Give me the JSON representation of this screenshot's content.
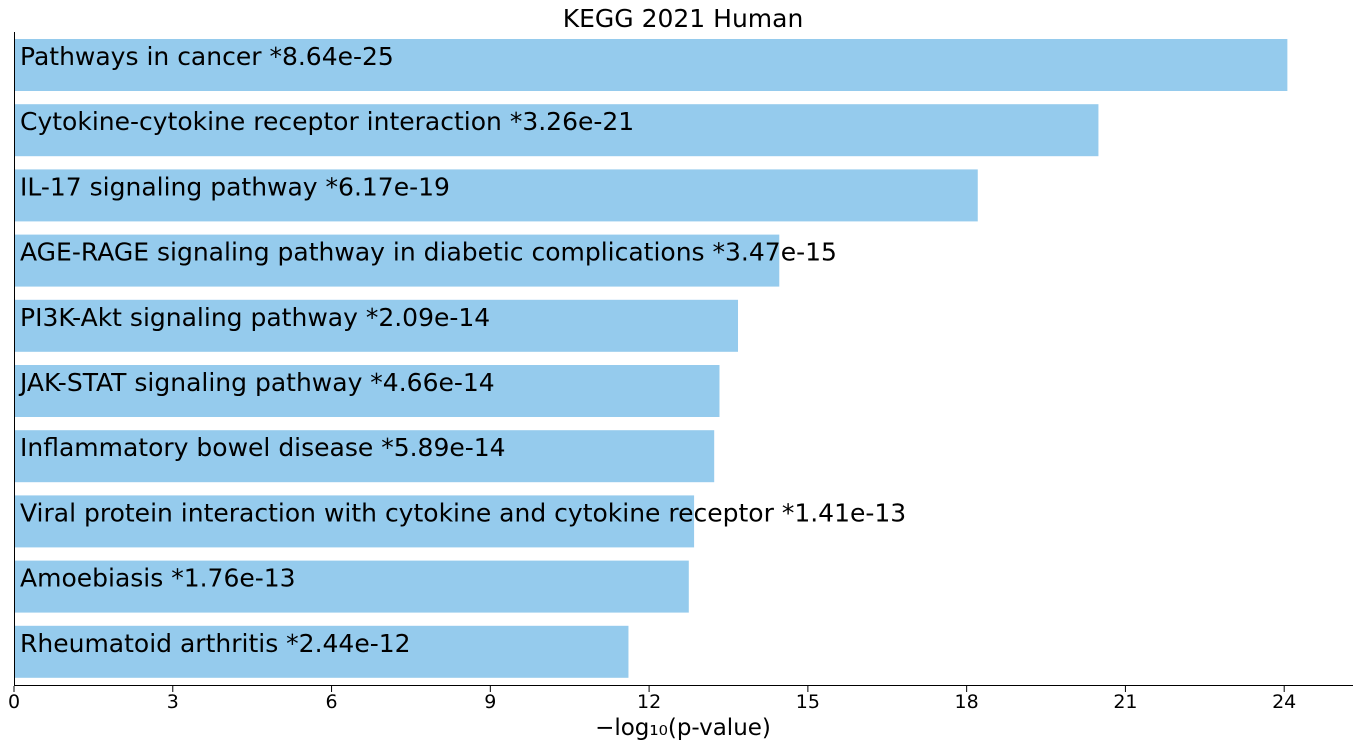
{
  "chart_data": {
    "type": "bar",
    "orientation": "horizontal",
    "title": "KEGG 2021 Human",
    "xlabel": "−log₁₀(p-value)",
    "ylabel": "",
    "xlim": [
      0,
      25.3
    ],
    "xticks": [
      0,
      3,
      6,
      9,
      12,
      15,
      18,
      21,
      24
    ],
    "bar_color": "#95cbed",
    "grid": false,
    "legend": "none",
    "categories": [
      "Pathways in cancer  *8.64e-25",
      "Cytokine-cytokine receptor interaction  *3.26e-21",
      "IL-17 signaling pathway  *6.17e-19",
      "AGE-RAGE signaling pathway in diabetic complications  *3.47e-15",
      "PI3K-Akt signaling pathway  *2.09e-14",
      "JAK-STAT signaling pathway  *4.66e-14",
      "Inflammatory bowel disease  *5.89e-14",
      "Viral protein interaction with cytokine and cytokine receptor  *1.41e-13",
      "Amoebiasis  *1.76e-13",
      "Rheumatoid arthritis  *2.44e-12"
    ],
    "values": [
      24.06,
      20.49,
      18.21,
      14.46,
      13.68,
      13.33,
      13.23,
      12.85,
      12.75,
      11.61
    ]
  }
}
